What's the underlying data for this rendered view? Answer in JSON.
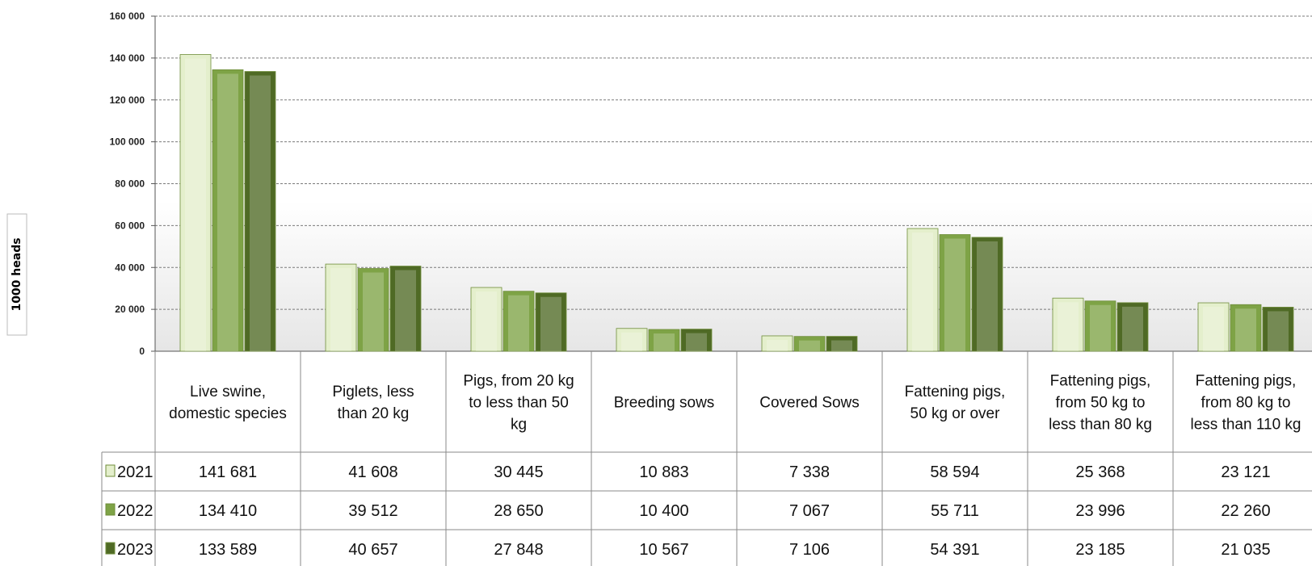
{
  "chart_data": {
    "type": "bar",
    "ylabel": "1000 heads",
    "ylim": [
      0,
      160000
    ],
    "yticks": [
      "0",
      "20 000",
      "40 000",
      "60 000",
      "80 000",
      "100 000",
      "120 000",
      "140 000",
      "160 000"
    ],
    "grid": true,
    "legend": "data-table",
    "categories": [
      "Live swine, domestic species",
      "Piglets, less than 20 kg",
      "Pigs, from 20 kg to less than 50 kg",
      "Breeding sows",
      "Covered Sows",
      "Fattening pigs, 50 kg or over",
      "Fattening pigs, from 50 kg to less than 80 kg",
      "Fattening pigs, from 80 kg to less than 110 kg"
    ],
    "series": [
      {
        "name": "2021",
        "color": "#e4efcc",
        "values": [
          141681,
          41608,
          30445,
          10883,
          7338,
          58594,
          25368,
          23121
        ],
        "labels": [
          "141 681",
          "41 608",
          "30 445",
          "10 883",
          "7 338",
          "58 594",
          "25 368",
          "23 121"
        ]
      },
      {
        "name": "2022",
        "color": "#7ea346",
        "values": [
          134410,
          39512,
          28650,
          10400,
          7067,
          55711,
          23996,
          22260
        ],
        "labels": [
          "134 410",
          "39 512",
          "28 650",
          "10 400",
          "7 067",
          "55 711",
          "23 996",
          "22 260"
        ]
      },
      {
        "name": "2023",
        "color": "#4f6a25",
        "values": [
          133589,
          40657,
          27848,
          10567,
          7106,
          54391,
          23185,
          21035
        ],
        "labels": [
          "133 589",
          "40 657",
          "27 848",
          "10 567",
          "7 106",
          "54 391",
          "23 185",
          "21 035"
        ]
      }
    ]
  }
}
